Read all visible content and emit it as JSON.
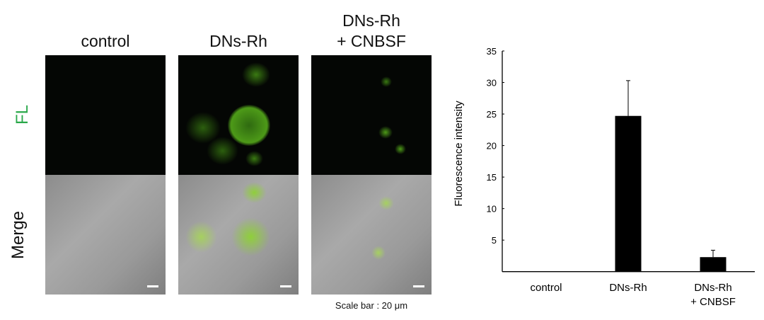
{
  "columns": [
    "control",
    "DNs-Rh",
    "DNs-Rh\n+ CNBSF"
  ],
  "column_line1": [
    "control",
    "DNs-Rh",
    "DNs-Rh"
  ],
  "column_line2": [
    "",
    "",
    "+ CNBSF"
  ],
  "rows": {
    "fl": "FL",
    "merge": "Merge"
  },
  "colors": {
    "fl_label": "#2aa84a",
    "fluorescence": "#7fd021",
    "bar": "#000000"
  },
  "scale_bar_text": "Scale bar : 20 μm",
  "chart_data": {
    "type": "bar",
    "categories": [
      "control",
      "DNs-Rh",
      "DNs-Rh\n+ CNBSF"
    ],
    "category_line1": [
      "control",
      "DNs-Rh",
      "DNs-Rh"
    ],
    "category_line2": [
      "",
      "",
      "+ CNBSF"
    ],
    "values": [
      0,
      24.7,
      2.3
    ],
    "error_upper": [
      0,
      30.3,
      3.4
    ],
    "ylabel": "Fluorescence intensity",
    "xlabel": "",
    "ylim": [
      0,
      35
    ],
    "yticks": [
      "5",
      "10",
      "15",
      "20",
      "25",
      "30",
      "35"
    ],
    "grid": false
  }
}
